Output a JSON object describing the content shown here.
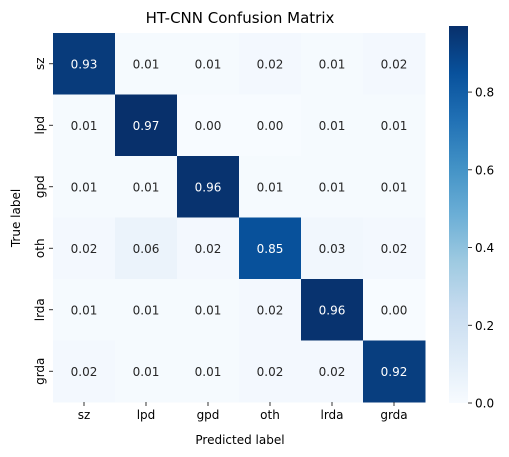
{
  "chart_data": {
    "type": "heatmap",
    "title": "HT-CNN Confusion Matrix",
    "xlabel": "Predicted label",
    "ylabel": "True label",
    "x_categories": [
      "sz",
      "lpd",
      "gpd",
      "oth",
      "lrda",
      "grda"
    ],
    "y_categories": [
      "sz",
      "lpd",
      "gpd",
      "oth",
      "lrda",
      "grda"
    ],
    "values": [
      [
        0.93,
        0.01,
        0.01,
        0.02,
        0.01,
        0.02
      ],
      [
        0.01,
        0.97,
        0.0,
        0.0,
        0.01,
        0.01
      ],
      [
        0.01,
        0.01,
        0.96,
        0.01,
        0.01,
        0.01
      ],
      [
        0.02,
        0.06,
        0.02,
        0.85,
        0.03,
        0.02
      ],
      [
        0.01,
        0.01,
        0.01,
        0.02,
        0.96,
        0.0
      ],
      [
        0.02,
        0.01,
        0.01,
        0.02,
        0.02,
        0.92
      ]
    ],
    "value_format": "0.00",
    "colormap": "Blues",
    "colormap_stops": [
      "#f7fbff",
      "#deebf7",
      "#c6dbef",
      "#9ecae1",
      "#6baed6",
      "#4292c6",
      "#2171b5",
      "#08519c",
      "#08306b"
    ],
    "vmin": 0.0,
    "vmax": 0.97,
    "colorbar": {
      "ticks": [
        0.0,
        0.2,
        0.4,
        0.6,
        0.8
      ],
      "tick_labels": [
        "0.0",
        "0.2",
        "0.4",
        "0.6",
        "0.8"
      ],
      "placement": "right"
    },
    "grid": false,
    "legend": "none"
  }
}
